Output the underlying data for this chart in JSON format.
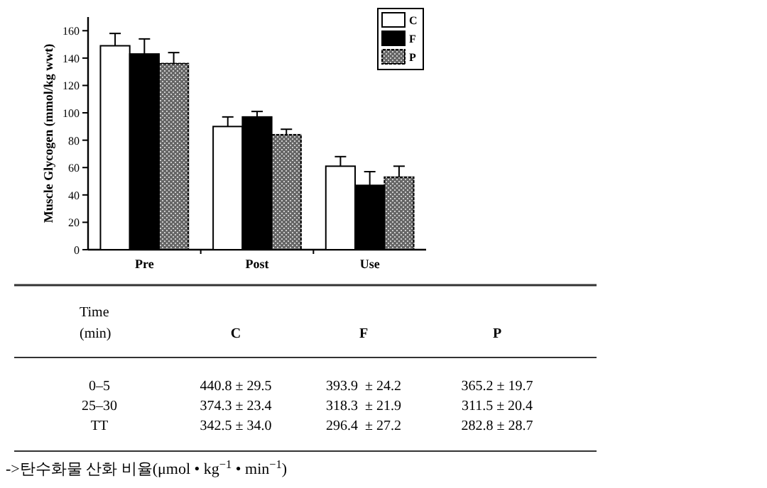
{
  "chart_data": [
    {
      "type": "bar",
      "ylabel": "Muscle Glycogen (mmol/kg wwt)",
      "categories": [
        "Pre",
        "Post",
        "Use"
      ],
      "ylim": [
        0,
        170
      ],
      "yticks": [
        0,
        20,
        40,
        60,
        80,
        100,
        120,
        140,
        160
      ],
      "legend": "top right",
      "grid": false,
      "series": [
        {
          "name": "C",
          "color": "#ffffff",
          "values": [
            149,
            90,
            61
          ],
          "errors": [
            [
              149,
              158
            ],
            [
              90,
              97
            ],
            [
              61,
              68
            ]
          ]
        },
        {
          "name": "F",
          "color": "#000000",
          "values": [
            143,
            97,
            47
          ],
          "errors": [
            [
              143,
              154
            ],
            [
              97,
              101
            ],
            [
              47,
              57
            ]
          ]
        },
        {
          "name": "P",
          "color": "#666666",
          "values": [
            136,
            84,
            53
          ],
          "errors": [
            [
              136,
              144
            ],
            [
              84,
              88
            ],
            [
              53,
              61
            ]
          ]
        }
      ]
    },
    {
      "type": "other",
      "categories": [
        "Time\n(min)",
        "C",
        "F",
        "P"
      ],
      "y_categories": [
        "0–5",
        "25–30",
        "TT"
      ],
      "cell_labels": [
        [
          "440.8 ± 29.5",
          "393.9  ± 24.2",
          "365.2 ± 19.7"
        ],
        [
          "374.3 ± 23.4",
          "318.3  ± 21.9",
          "311.5 ± 20.4"
        ],
        [
          "342.5 ± 34.0",
          "296.4  ± 27.2",
          "282.8 ± 28.7"
        ]
      ],
      "annotations": [
        "->탄수화물 산화 비율(μmol • kg$^{−1}$ • min$^{−1}$)"
      ]
    }
  ]
}
